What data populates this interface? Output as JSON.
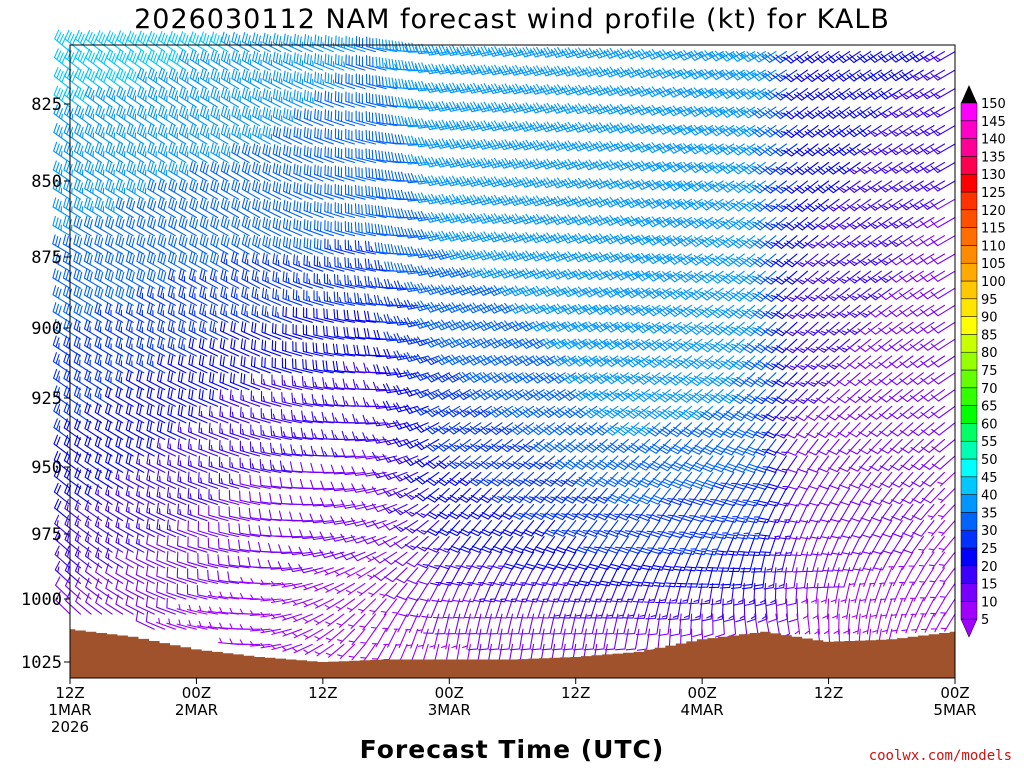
{
  "chart_data": {
    "type": "wind-barb-time-height",
    "title": "2026030112 NAM forecast wind profile (kt) for KALB",
    "xlabel": "Forecast Time (UTC)",
    "ylabel": "",
    "credit": "coolwx.com/models",
    "pressure_range_hpa": [
      805,
      1030
    ],
    "hours_range": [
      0,
      84
    ],
    "y_ticks": [
      {
        "p": 825,
        "label": "825"
      },
      {
        "p": 850,
        "label": "850"
      },
      {
        "p": 875,
        "label": "875"
      },
      {
        "p": 900,
        "label": "900"
      },
      {
        "p": 925,
        "label": "925"
      },
      {
        "p": 950,
        "label": "950"
      },
      {
        "p": 975,
        "label": "975"
      },
      {
        "p": 1000,
        "label": "1000"
      },
      {
        "p": 1025,
        "label": "1025"
      }
    ],
    "x_ticks": [
      {
        "hour": 0,
        "line1": "12Z",
        "line2": "1MAR",
        "line3": "2026"
      },
      {
        "hour": 12,
        "line1": "00Z",
        "line2": "2MAR",
        "line3": ""
      },
      {
        "hour": 24,
        "line1": "12Z",
        "line2": "",
        "line3": ""
      },
      {
        "hour": 36,
        "line1": "00Z",
        "line2": "3MAR",
        "line3": ""
      },
      {
        "hour": 48,
        "line1": "12Z",
        "line2": "",
        "line3": ""
      },
      {
        "hour": 60,
        "line1": "00Z",
        "line2": "4MAR",
        "line3": ""
      },
      {
        "hour": 72,
        "line1": "12Z",
        "line2": "",
        "line3": ""
      },
      {
        "hour": 84,
        "line1": "00Z",
        "line2": "5MAR",
        "line3": ""
      }
    ],
    "colorbar": {
      "labels": [
        "5",
        "10",
        "15",
        "20",
        "25",
        "30",
        "35",
        "40",
        "45",
        "50",
        "55",
        "60",
        "65",
        "70",
        "75",
        "80",
        "85",
        "90",
        "95",
        "100",
        "105",
        "110",
        "115",
        "120",
        "125",
        "130",
        "135",
        "140",
        "145",
        "150"
      ],
      "colors": [
        "#a000ff",
        "#7800ff",
        "#3c00ff",
        "#0000ff",
        "#0032ff",
        "#0064ff",
        "#0096ff",
        "#00c8ff",
        "#00ffff",
        "#00ffb4",
        "#00ff64",
        "#00ff00",
        "#32ff00",
        "#64ff00",
        "#96ff00",
        "#c8ff00",
        "#ffff00",
        "#ffe600",
        "#ffc800",
        "#ffaa00",
        "#ff8c00",
        "#ff6e00",
        "#ff5000",
        "#ff3200",
        "#ff0000",
        "#ff0050",
        "#ff0096",
        "#ff00c8",
        "#ff00ff",
        "#ff00ff"
      ]
    },
    "terrain_color": "#a0522d",
    "surface_pressure": {
      "hours": [
        0,
        6,
        12,
        18,
        24,
        30,
        36,
        42,
        48,
        54,
        60,
        66,
        72,
        78,
        84
      ],
      "hpa": [
        1012,
        1015,
        1020,
        1023,
        1025,
        1024,
        1024,
        1024,
        1023,
        1021,
        1016,
        1013,
        1017,
        1016,
        1013
      ]
    },
    "wind_barbs_note": "barbs every 1 h and ~6 hPa; speed/direction sampled from the plotted field",
    "wind_keyframes": [
      {
        "hour": 0,
        "levels": [
          {
            "p": 810,
            "dir": 310,
            "spd": 40
          },
          {
            "p": 875,
            "dir": 300,
            "spd": 32
          },
          {
            "p": 925,
            "dir": 305,
            "spd": 25
          },
          {
            "p": 975,
            "dir": 310,
            "spd": 17
          },
          {
            "p": 1010,
            "dir": 315,
            "spd": 10
          }
        ]
      },
      {
        "hour": 18,
        "levels": [
          {
            "p": 810,
            "dir": 300,
            "spd": 37
          },
          {
            "p": 875,
            "dir": 300,
            "spd": 28
          },
          {
            "p": 925,
            "dir": 290,
            "spd": 17
          },
          {
            "p": 975,
            "dir": 280,
            "spd": 10
          },
          {
            "p": 1010,
            "dir": 270,
            "spd": 5
          }
        ]
      },
      {
        "hour": 30,
        "levels": [
          {
            "p": 810,
            "dir": 285,
            "spd": 32
          },
          {
            "p": 875,
            "dir": 280,
            "spd": 27
          },
          {
            "p": 925,
            "dir": 270,
            "spd": 15
          },
          {
            "p": 975,
            "dir": 250,
            "spd": 8
          },
          {
            "p": 1010,
            "dir": 210,
            "spd": 5
          }
        ]
      },
      {
        "hour": 36,
        "levels": [
          {
            "p": 810,
            "dir": 260,
            "spd": 37
          },
          {
            "p": 875,
            "dir": 255,
            "spd": 32
          },
          {
            "p": 925,
            "dir": 240,
            "spd": 25
          },
          {
            "p": 975,
            "dir": 220,
            "spd": 17
          },
          {
            "p": 1010,
            "dir": 190,
            "spd": 7
          }
        ]
      },
      {
        "hour": 54,
        "levels": [
          {
            "p": 810,
            "dir": 250,
            "spd": 37
          },
          {
            "p": 875,
            "dir": 245,
            "spd": 37
          },
          {
            "p": 925,
            "dir": 235,
            "spd": 35
          },
          {
            "p": 975,
            "dir": 215,
            "spd": 25
          },
          {
            "p": 1010,
            "dir": 190,
            "spd": 10
          }
        ]
      },
      {
        "hour": 66,
        "levels": [
          {
            "p": 810,
            "dir": 240,
            "spd": 37
          },
          {
            "p": 875,
            "dir": 230,
            "spd": 33
          },
          {
            "p": 925,
            "dir": 225,
            "spd": 32
          },
          {
            "p": 975,
            "dir": 200,
            "spd": 22
          },
          {
            "p": 1010,
            "dir": 165,
            "spd": 10
          }
        ]
      },
      {
        "hour": 70,
        "levels": [
          {
            "p": 810,
            "dir": 235,
            "spd": 22
          },
          {
            "p": 875,
            "dir": 230,
            "spd": 18
          },
          {
            "p": 925,
            "dir": 225,
            "spd": 13
          },
          {
            "p": 975,
            "dir": 200,
            "spd": 10
          },
          {
            "p": 1010,
            "dir": 170,
            "spd": 5
          }
        ]
      },
      {
        "hour": 84,
        "levels": [
          {
            "p": 810,
            "dir": 240,
            "spd": 17
          },
          {
            "p": 875,
            "dir": 240,
            "spd": 10
          },
          {
            "p": 925,
            "dir": 235,
            "spd": 8
          },
          {
            "p": 975,
            "dir": 220,
            "spd": 7
          },
          {
            "p": 1010,
            "dir": 210,
            "spd": 5
          }
        ]
      }
    ]
  }
}
